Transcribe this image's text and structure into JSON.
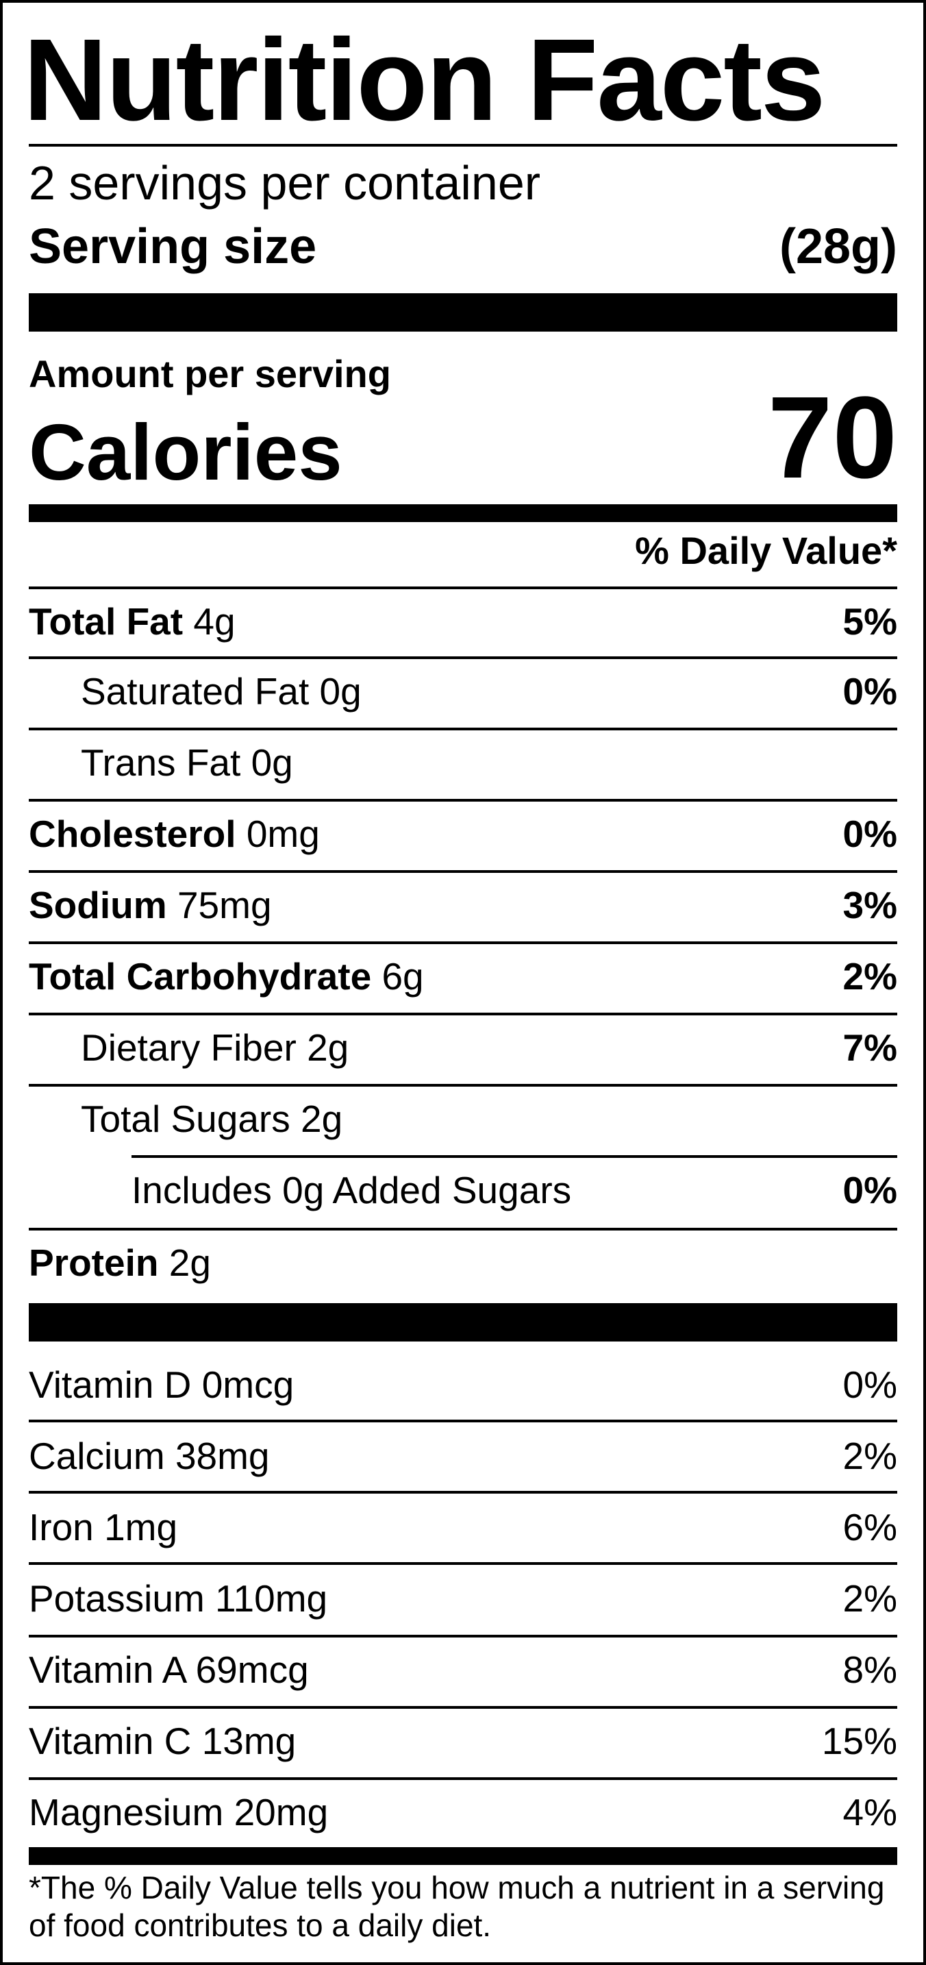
{
  "title": "Nutrition Facts",
  "servings_per_container": "2 servings per container",
  "serving_size": {
    "label": "Serving size",
    "value": "(28g)"
  },
  "amount_per_serving": "Amount per serving",
  "calories": {
    "label": "Calories",
    "value": "70"
  },
  "daily_value_header": "% Daily Value*",
  "nutrients": [
    {
      "name": "Total Fat",
      "amount": "4g",
      "dv": "5%"
    },
    {
      "name": "Saturated Fat",
      "amount": "0g",
      "dv": "0%"
    },
    {
      "name": "Trans Fat",
      "amount": "0g",
      "dv": ""
    },
    {
      "name": "Cholesterol",
      "amount": "0mg",
      "dv": "0%"
    },
    {
      "name": "Sodium",
      "amount": "75mg",
      "dv": "3%"
    },
    {
      "name": "Total Carbohydrate",
      "amount": "6g",
      "dv": "2%"
    },
    {
      "name": "Dietary Fiber",
      "amount": "2g",
      "dv": "7%"
    },
    {
      "name": "Total Sugars",
      "amount": "2g",
      "dv": ""
    },
    {
      "name": "Includes 0g Added Sugars",
      "amount": "",
      "dv": "0%"
    },
    {
      "name": "Protein",
      "amount": "2g",
      "dv": ""
    }
  ],
  "vitamins": [
    {
      "name": "Vitamin D",
      "amount": "0mcg",
      "dv": "0%"
    },
    {
      "name": "Calcium",
      "amount": "38mg",
      "dv": "2%"
    },
    {
      "name": "Iron",
      "amount": "1mg",
      "dv": "6%"
    },
    {
      "name": "Potassium",
      "amount": "110mg",
      "dv": "2%"
    },
    {
      "name": "Vitamin A",
      "amount": "69mcg",
      "dv": "8%"
    },
    {
      "name": "Vitamin C",
      "amount": "13mg",
      "dv": "15%"
    },
    {
      "name": "Magnesium",
      "amount": "20mg",
      "dv": "4%"
    }
  ],
  "footnote": "*The % Daily Value tells you how much a nutrient in a serving of food contributes to a daily diet."
}
